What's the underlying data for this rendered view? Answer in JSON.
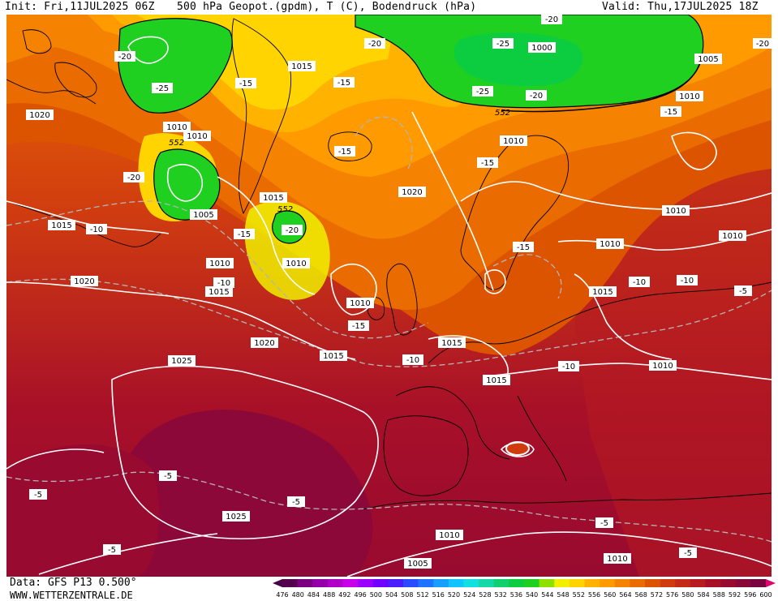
{
  "header": {
    "init": "Init: Fri,11JUL2025 06Z",
    "title": "500 hPa Geopot.(gpdm), T (C), Bodendruck (hPa)",
    "valid": "Valid: Thu,17JUL2025 18Z"
  },
  "footer": {
    "data_source": "Data: GFS P13 0.500°",
    "website": "WWW.WETTERZENTRALE.DE"
  },
  "colorbar": {
    "levels": [
      "476",
      "480",
      "484",
      "488",
      "492",
      "496",
      "500",
      "504",
      "508",
      "512",
      "516",
      "520",
      "524",
      "528",
      "532",
      "536",
      "540",
      "544",
      "548",
      "552",
      "556",
      "560",
      "564",
      "568",
      "572",
      "576",
      "580",
      "584",
      "588",
      "592",
      "596",
      "600"
    ],
    "colors": [
      "#55004f",
      "#7a0080",
      "#9400a8",
      "#b000c8",
      "#c800e6",
      "#9b00ff",
      "#7000ff",
      "#4a1dff",
      "#2a4bff",
      "#1c74ff",
      "#15a0ff",
      "#10c4ff",
      "#12e0e0",
      "#14d8a8",
      "#12d070",
      "#0ccc40",
      "#20d020",
      "#8ee000",
      "#f0f000",
      "#ffd400",
      "#ffb200",
      "#ff9a00",
      "#f58200",
      "#ea6c00",
      "#dd5400",
      "#d03c10",
      "#c42a18",
      "#b61c20",
      "#a81028",
      "#980a30",
      "#880838",
      "#780440"
    ],
    "end_color_low": "#4a0048",
    "end_color_high": "#e0006e"
  },
  "map": {
    "pressure_labels": [
      "1020",
      "1015",
      "1000",
      "1005",
      "1010",
      "1010",
      "1010",
      "1020",
      "1015",
      "1010",
      "1010",
      "1010",
      "1015",
      "1005",
      "1010",
      "1020",
      "1010",
      "1015",
      "1010",
      "1020",
      "1015",
      "1015",
      "1025",
      "1010",
      "1015",
      "1025",
      "1010",
      "1005",
      "1010",
      "1010",
      "1015"
    ],
    "temperature_labels": [
      "-20",
      "-25",
      "-20",
      "-25",
      "-15",
      "-15",
      "-15",
      "-20",
      "-15",
      "-15",
      "-20",
      "-10",
      "-15",
      "-10",
      "-15",
      "-10",
      "-10",
      "-10",
      "-10",
      "-5",
      "-5",
      "-5",
      "-5",
      "-5",
      "-5",
      "-5",
      "-20",
      "-15",
      "-20",
      "-25",
      "-20"
    ],
    "geopotential_labels": [
      "552",
      "552",
      "552"
    ]
  }
}
